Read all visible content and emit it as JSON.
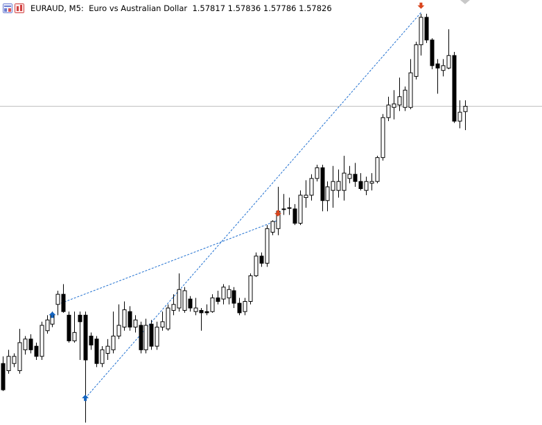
{
  "chart_data": {
    "type": "candlestick",
    "symbol": "EURAUD, M5:",
    "description": "Euro vs Australian Dollar",
    "open": [
      1.57395,
      1.57383,
      1.57395,
      1.57383,
      1.57418,
      1.57436,
      1.57424,
      1.57407,
      1.5745,
      1.57461,
      1.57494,
      1.57511,
      1.57476,
      1.57433,
      1.57476,
      1.57476,
      1.57441,
      1.57436,
      1.57395,
      1.57412,
      1.57418,
      1.57441,
      1.57456,
      1.57482,
      1.57456,
      1.57459,
      1.57418,
      1.57461,
      1.57424,
      1.57456,
      1.57453,
      1.57484,
      1.57488,
      1.57484,
      1.57503,
      1.57482,
      1.57484,
      1.57482,
      1.57482,
      1.57505,
      1.57503,
      1.57505,
      1.57517,
      1.57496,
      1.57482,
      1.57499,
      1.57542,
      1.57575,
      1.57563,
      1.57615,
      1.57621,
      1.57654,
      1.57656,
      1.57654,
      1.5763,
      1.57673,
      1.57677,
      1.57705,
      1.57723,
      1.57668,
      1.57685,
      1.57685,
      1.57685,
      1.57705,
      1.57712,
      1.577,
      1.57685,
      1.57697,
      1.577,
      1.5774,
      1.57807,
      1.57824,
      1.57828,
      1.57824,
      1.57824,
      1.57876,
      1.57929,
      1.57975,
      1.57937,
      1.57897,
      1.57886,
      1.5789,
      1.57911,
      1.57801,
      1.57817
    ],
    "high": [
      1.57407,
      1.57418,
      1.57412,
      1.57453,
      1.57441,
      1.57444,
      1.5743,
      1.57465,
      1.57476,
      1.57482,
      1.57517,
      1.57528,
      1.57482,
      1.57482,
      1.57482,
      1.57482,
      1.57447,
      1.57441,
      1.57424,
      1.57436,
      1.57482,
      1.57494,
      1.57499,
      1.57491,
      1.57476,
      1.57465,
      1.5747,
      1.57468,
      1.57465,
      1.57482,
      1.57494,
      1.57511,
      1.57546,
      1.57523,
      1.57508,
      1.57505,
      1.57488,
      1.57494,
      1.57511,
      1.57517,
      1.57528,
      1.57526,
      1.57523,
      1.57505,
      1.57505,
      1.57546,
      1.57581,
      1.57581,
      1.57627,
      1.57635,
      1.57691,
      1.57679,
      1.57673,
      1.57662,
      1.57685,
      1.57702,
      1.57712,
      1.57728,
      1.57728,
      1.577,
      1.57726,
      1.5772,
      1.57743,
      1.57726,
      1.57731,
      1.57714,
      1.57708,
      1.57714,
      1.57743,
      1.57813,
      1.57842,
      1.57853,
      1.57874,
      1.57859,
      1.57905,
      1.57934,
      1.57981,
      1.57981,
      1.5794,
      1.57905,
      1.57905,
      1.57955,
      1.57917,
      1.57836,
      1.57836
    ],
    "low": [
      1.57349,
      1.57378,
      1.57389,
      1.57378,
      1.5741,
      1.57412,
      1.57401,
      1.57401,
      1.57445,
      1.57456,
      1.57476,
      1.5748,
      1.5743,
      1.5743,
      1.57401,
      1.57296,
      1.57418,
      1.57389,
      1.57389,
      1.57401,
      1.57412,
      1.57436,
      1.5745,
      1.5745,
      1.57447,
      1.57412,
      1.57412,
      1.57418,
      1.57418,
      1.5745,
      1.5745,
      1.57476,
      1.57482,
      1.5748,
      1.57482,
      1.57476,
      1.5745,
      1.57476,
      1.5748,
      1.57494,
      1.57494,
      1.57494,
      1.57488,
      1.57476,
      1.57476,
      1.57494,
      1.5754,
      1.57557,
      1.57557,
      1.5761,
      1.5761,
      1.57644,
      1.57644,
      1.57627,
      1.57627,
      1.57656,
      1.57668,
      1.577,
      1.5765,
      1.5765,
      1.57656,
      1.57673,
      1.57668,
      1.57697,
      1.57691,
      1.57685,
      1.57677,
      1.57685,
      1.57697,
      1.57735,
      1.57801,
      1.57804,
      1.57818,
      1.57818,
      1.57821,
      1.57871,
      1.57911,
      1.57932,
      1.57888,
      1.57847,
      1.57876,
      1.57888,
      1.57798,
      1.57789,
      1.57786
    ],
    "close": [
      1.57351,
      1.57407,
      1.57407,
      1.5743,
      1.57436,
      1.57418,
      1.57407,
      1.57459,
      1.57468,
      1.57476,
      1.57511,
      1.57482,
      1.57433,
      1.57447,
      1.57465,
      1.57401,
      1.57426,
      1.57395,
      1.57418,
      1.57424,
      1.57441,
      1.57459,
      1.57485,
      1.57456,
      1.57468,
      1.57418,
      1.57459,
      1.57424,
      1.57456,
      1.57465,
      1.57488,
      1.57494,
      1.57519,
      1.57517,
      1.57488,
      1.57488,
      1.5748,
      1.5748,
      1.57505,
      1.57499,
      1.57523,
      1.57519,
      1.57496,
      1.5748,
      1.57499,
      1.57542,
      1.57575,
      1.57563,
      1.57621,
      1.57633,
      1.5765,
      1.57654,
      1.57656,
      1.5763,
      1.57677,
      1.57677,
      1.57705,
      1.57723,
      1.57668,
      1.57691,
      1.577,
      1.577,
      1.57714,
      1.57712,
      1.577,
      1.57688,
      1.577,
      1.577,
      1.5774,
      1.57807,
      1.57828,
      1.5783,
      1.57842,
      1.57853,
      1.57882,
      1.57929,
      1.57975,
      1.57937,
      1.57894,
      1.5789,
      1.57894,
      1.57911,
      1.57801,
      1.57816,
      1.57826
    ],
    "ylim": [
      1.57292,
      1.58004
    ],
    "up_color": "#ffffff",
    "down_color": "#000000",
    "price_line": true,
    "price_line_color": "#c0c0c0",
    "lines": [
      {
        "x": [
          10,
          50
        ],
        "values": [
          1.57494,
          1.57635
        ],
        "color": "#1e6fd0"
      },
      {
        "x": [
          15,
          76
        ],
        "values": [
          1.57337,
          1.57983
        ],
        "color": "#1e6fd0"
      }
    ],
    "arrows": [
      {
        "x": 9,
        "value": 1.57476,
        "direction": "up",
        "color": "#1565c0"
      },
      {
        "x": 15,
        "value": 1.57337,
        "direction": "up",
        "color": "#1565c0"
      },
      {
        "x": 50,
        "value": 1.57647,
        "direction": "down",
        "color": "#d9441c"
      },
      {
        "x": 76,
        "value": 1.57995,
        "direction": "down",
        "color": "#d9441c"
      }
    ]
  }
}
